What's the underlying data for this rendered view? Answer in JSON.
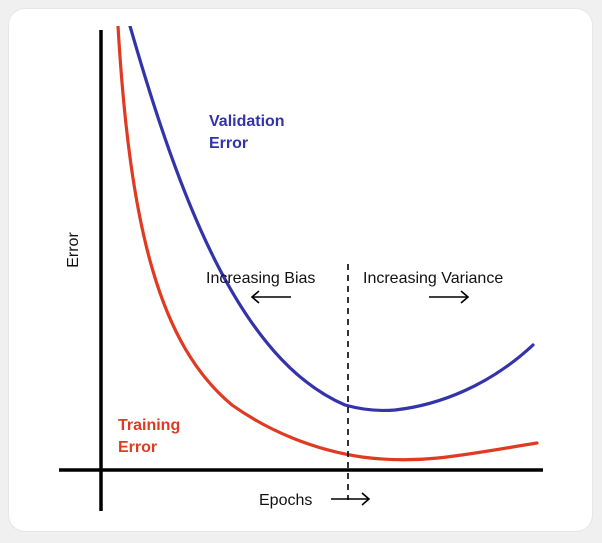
{
  "chart_data": {
    "type": "line",
    "xlabel": "Epochs",
    "ylabel": "Error",
    "colors": {
      "validation": "#3333aa",
      "training": "#e03a22",
      "axis": "#000000"
    },
    "series": [
      {
        "name": "Validation Error",
        "label_lines": [
          "Validation",
          "Error"
        ],
        "color": "#3333aa"
      },
      {
        "name": "Training Error",
        "label_lines": [
          "Training",
          "Error"
        ],
        "color": "#e03a22"
      }
    ],
    "annotations": {
      "left_region": "Increasing Bias",
      "right_region": "Increasing Variance"
    },
    "grid": false
  }
}
